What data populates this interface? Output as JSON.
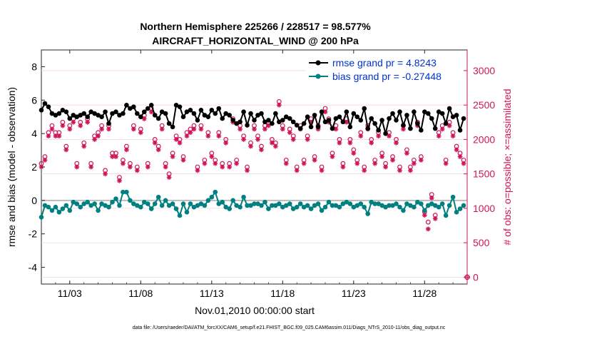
{
  "chart_data": {
    "type": "line",
    "title_line1": "Northern Hemisphere 225266 / 228517 = 98.577%",
    "title_line2": "AIRCRAFT_HORIZONTAL_WIND @ 200 hPa",
    "xlabel": "Nov.01,2010 00:00:00 start",
    "ylabel_left": "rmse and bias (model - observation)",
    "ylabel_right": "# of obs: o=possible; ×=assimilated",
    "footer": "data file: /Users/raeder/DAI/ATM_forcXX/CAM6_setup/f.e21.FHIST_BGC.f09_025.CAM6assim.011/Diags_NTrS_2010-11/obs_diag_output.nc",
    "xlim": [
      1,
      31
    ],
    "ylim_left": [
      -5,
      9
    ],
    "ylim_right": [
      -100,
      3300
    ],
    "x_ticks": [
      3,
      8,
      13,
      18,
      23,
      28
    ],
    "x_tick_labels": [
      "11/03",
      "11/08",
      "11/13",
      "11/18",
      "11/23",
      "11/28"
    ],
    "y_left_ticks": [
      -4,
      -2,
      0,
      2,
      4,
      6,
      8
    ],
    "y_left_tick_labels": [
      "-4",
      "-2",
      "0",
      "2",
      "4",
      "6",
      "8"
    ],
    "y_right_ticks": [
      0,
      500,
      1000,
      1500,
      2000,
      2500,
      3000
    ],
    "y_right_tick_labels": [
      "0",
      "500",
      "1000",
      "1500",
      "2000",
      "2500",
      "3000"
    ],
    "legend": [
      {
        "label": "rmse grand pr = 4.8243",
        "color": "#000000"
      },
      {
        "label": "bias grand pr = -0.27448",
        "color": "#008080"
      }
    ],
    "colors": {
      "rmse": "#000000",
      "bias": "#008080",
      "obs": "#d0145a",
      "legend_text": "#0033cc",
      "zero_line": "#bbbbbb"
    },
    "series": [
      {
        "name": "rmse",
        "axis": "left",
        "x": [
          1.0,
          1.25,
          1.5,
          1.75,
          2.0,
          2.25,
          2.5,
          2.75,
          3.0,
          3.25,
          3.5,
          3.75,
          4.0,
          4.25,
          4.5,
          4.75,
          5.0,
          5.25,
          5.5,
          5.75,
          6.0,
          6.25,
          6.5,
          6.75,
          7.0,
          7.25,
          7.5,
          7.75,
          8.0,
          8.25,
          8.5,
          8.75,
          9.0,
          9.25,
          9.5,
          9.75,
          10.0,
          10.25,
          10.5,
          10.75,
          11.0,
          11.25,
          11.5,
          11.75,
          12.0,
          12.25,
          12.5,
          12.75,
          13.0,
          13.25,
          13.5,
          13.75,
          14.0,
          14.25,
          14.5,
          14.75,
          15.0,
          15.25,
          15.5,
          15.75,
          16.0,
          16.25,
          16.5,
          16.75,
          17.0,
          17.25,
          17.5,
          17.75,
          18.0,
          18.25,
          18.5,
          18.75,
          19.0,
          19.25,
          19.5,
          19.75,
          20.0,
          20.25,
          20.5,
          20.75,
          21.0,
          21.25,
          21.5,
          21.75,
          22.0,
          22.25,
          22.5,
          22.75,
          23.0,
          23.25,
          23.5,
          23.75,
          24.0,
          24.25,
          24.5,
          24.75,
          25.0,
          25.25,
          25.5,
          25.75,
          26.0,
          26.25,
          26.5,
          26.75,
          27.0,
          27.25,
          27.5,
          27.75,
          28.0,
          28.25,
          28.5,
          28.75,
          29.0,
          29.25,
          29.5,
          29.75,
          30.0,
          30.25,
          30.5,
          30.75
        ],
        "values": [
          5.4,
          5.8,
          5.6,
          5.2,
          5.1,
          5.2,
          5.4,
          5.3,
          4.9,
          5.1,
          5.0,
          5.1,
          5.2,
          5.0,
          5.3,
          5.2,
          5.1,
          5.0,
          5.3,
          4.6,
          5.2,
          5.3,
          5.1,
          5.2,
          5.7,
          5.5,
          5.6,
          5.2,
          5.0,
          5.3,
          5.5,
          5.7,
          5.1,
          4.9,
          5.3,
          5.2,
          4.6,
          4.4,
          5.7,
          5.6,
          5.0,
          5.3,
          5.4,
          5.2,
          4.8,
          5.4,
          5.1,
          5.0,
          5.4,
          5.2,
          5.5,
          4.9,
          5.2,
          5.1,
          4.8,
          4.6,
          4.7,
          5.3,
          4.5,
          5.2,
          4.8,
          5.1,
          5.2,
          4.7,
          4.8,
          4.6,
          5.2,
          4.7,
          4.8,
          5.0,
          4.9,
          4.7,
          4.5,
          4.3,
          4.6,
          5.0,
          4.4,
          5.1,
          4.4,
          5.3,
          4.7,
          4.8,
          4.3,
          4.9,
          5.0,
          4.7,
          5.3,
          4.4,
          5.2,
          5.0,
          4.8,
          5.5,
          4.3,
          4.9,
          4.6,
          4.2,
          4.8,
          4.0,
          4.9,
          5.2,
          4.8,
          5.3,
          4.5,
          5.1,
          4.3,
          5.3,
          4.6,
          4.2,
          5.3,
          5.2,
          4.9,
          4.3,
          5.3,
          5.2,
          4.6,
          5.5,
          5.0,
          5.1,
          4.2,
          4.9
        ],
        "marker": "filled-circle"
      },
      {
        "name": "bias",
        "axis": "left",
        "x": [
          1.0,
          1.25,
          1.5,
          1.75,
          2.0,
          2.25,
          2.5,
          2.75,
          3.0,
          3.25,
          3.5,
          3.75,
          4.0,
          4.25,
          4.5,
          4.75,
          5.0,
          5.25,
          5.5,
          5.75,
          6.0,
          6.25,
          6.5,
          6.75,
          7.0,
          7.25,
          7.5,
          7.75,
          8.0,
          8.25,
          8.5,
          8.75,
          9.0,
          9.25,
          9.5,
          9.75,
          10.0,
          10.25,
          10.5,
          10.75,
          11.0,
          11.25,
          11.5,
          11.75,
          12.0,
          12.25,
          12.5,
          12.75,
          13.0,
          13.25,
          13.5,
          13.75,
          14.0,
          14.25,
          14.5,
          14.75,
          15.0,
          15.25,
          15.5,
          15.75,
          16.0,
          16.25,
          16.5,
          16.75,
          17.0,
          17.25,
          17.5,
          17.75,
          18.0,
          18.25,
          18.5,
          18.75,
          19.0,
          19.25,
          19.5,
          19.75,
          20.0,
          20.25,
          20.5,
          20.75,
          21.0,
          21.25,
          21.5,
          21.75,
          22.0,
          22.25,
          22.5,
          22.75,
          23.0,
          23.25,
          23.5,
          23.75,
          24.0,
          24.25,
          24.5,
          24.75,
          25.0,
          25.25,
          25.5,
          25.75,
          26.0,
          26.25,
          26.5,
          26.75,
          27.0,
          27.25,
          27.5,
          27.75,
          28.0,
          28.25,
          28.5,
          28.75,
          29.0,
          29.25,
          29.5,
          29.75,
          30.0,
          30.25,
          30.5,
          30.75
        ],
        "values": [
          -1.0,
          -0.3,
          -0.4,
          -0.6,
          -0.4,
          -0.7,
          -0.5,
          -0.3,
          -0.6,
          -0.1,
          -0.2,
          -0.4,
          -0.2,
          -0.1,
          -0.3,
          -0.2,
          -0.6,
          -0.2,
          -0.3,
          -0.4,
          -0.1,
          0.1,
          -0.3,
          0.5,
          0.5,
          0.0,
          -0.2,
          -0.3,
          -0.4,
          -0.1,
          -0.2,
          -0.5,
          -0.2,
          0.2,
          -0.3,
          0.0,
          -0.3,
          -0.2,
          -0.5,
          -0.9,
          -0.2,
          -0.7,
          -0.2,
          -0.4,
          -0.3,
          -0.2,
          -0.3,
          0.0,
          0.2,
          0.5,
          -0.2,
          -0.1,
          -0.4,
          -0.5,
          0.0,
          -0.3,
          -0.4,
          0.2,
          -0.3,
          -0.3,
          -0.2,
          -0.2,
          -0.3,
          -0.1,
          -0.5,
          -0.3,
          -0.3,
          -0.2,
          -0.4,
          -0.3,
          -0.2,
          -0.5,
          -0.4,
          -0.2,
          -0.4,
          -0.3,
          -0.5,
          -0.3,
          -0.2,
          -0.6,
          -0.4,
          -0.1,
          -0.3,
          -0.3,
          -0.4,
          -0.2,
          -0.1,
          -0.2,
          -0.4,
          -0.3,
          -0.2,
          -0.4,
          -0.8,
          -0.1,
          -0.2,
          -0.2,
          -0.3,
          -0.4,
          -0.3,
          -0.3,
          -0.2,
          -0.4,
          -0.6,
          -0.2,
          -0.3,
          -0.4,
          -0.1,
          -0.2,
          -0.6,
          -0.3,
          -0.2,
          -0.3,
          -0.4,
          -0.2,
          -0.9,
          -0.3,
          0.2,
          -0.7,
          -0.5,
          -0.3
        ],
        "marker": "filled-circle"
      },
      {
        "name": "obs possible",
        "axis": "right",
        "x": [
          1.0,
          1.25,
          1.5,
          1.75,
          2.0,
          2.25,
          2.5,
          2.75,
          3.0,
          3.25,
          3.5,
          3.75,
          4.0,
          4.25,
          4.5,
          4.75,
          5.0,
          5.25,
          5.5,
          5.75,
          6.0,
          6.25,
          6.5,
          6.75,
          7.0,
          7.25,
          7.5,
          7.75,
          8.0,
          8.25,
          8.5,
          8.75,
          9.0,
          9.25,
          9.5,
          9.75,
          10.0,
          10.25,
          10.5,
          10.75,
          11.0,
          11.25,
          11.5,
          11.75,
          12.0,
          12.25,
          12.5,
          12.75,
          13.0,
          13.25,
          13.5,
          13.75,
          14.0,
          14.25,
          14.5,
          14.75,
          15.0,
          15.25,
          15.5,
          15.75,
          16.0,
          16.25,
          16.5,
          16.75,
          17.0,
          17.25,
          17.5,
          17.75,
          18.0,
          18.25,
          18.5,
          18.75,
          19.0,
          19.25,
          19.5,
          19.75,
          20.0,
          20.25,
          20.5,
          20.75,
          21.0,
          21.25,
          21.5,
          21.75,
          22.0,
          22.25,
          22.5,
          22.75,
          23.0,
          23.25,
          23.5,
          23.75,
          24.0,
          24.25,
          24.5,
          24.75,
          25.0,
          25.25,
          25.5,
          25.75,
          26.0,
          26.25,
          26.5,
          26.75,
          27.0,
          27.25,
          27.5,
          27.75,
          28.0,
          28.25,
          28.5,
          28.75,
          29.0,
          29.25,
          29.5,
          29.75,
          30.0,
          30.25,
          30.5,
          30.75
        ],
        "values": [
          1650,
          1750,
          2100,
          2200,
          2100,
          2100,
          2250,
          1900,
          2200,
          2300,
          1650,
          2250,
          1950,
          2300,
          1650,
          2050,
          2100,
          2200,
          1550,
          2200,
          1800,
          1800,
          1450,
          1700,
          1900,
          1650,
          2200,
          1600,
          2150,
          2350,
          1650,
          2450,
          2000,
          1900,
          2200,
          1650,
          1500,
          1800,
          2050,
          2000,
          1750,
          2100,
          2150,
          2200,
          1600,
          2200,
          1700,
          2100,
          1800,
          1700,
          2100,
          1650,
          2000,
          1650,
          2300,
          1700,
          2200,
          2050,
          1600,
          1950,
          2200,
          2050,
          1900,
          2200,
          2250,
          2000,
          1950,
          2550,
          2200,
          1700,
          2150,
          2050,
          1600,
          2200,
          1700,
          2050,
          2300,
          1750,
          2200,
          1600,
          2450,
          2300,
          1800,
          2200,
          2000,
          1650,
          2300,
          2000,
          1850,
          1700,
          2100,
          1600,
          2200,
          2000,
          1700,
          2100,
          1800,
          1650,
          2100,
          1750,
          2000,
          1600,
          2200,
          1850,
          1600,
          1700,
          2250,
          1750,
          950,
          800,
          1200,
          900,
          2100,
          2200,
          1700,
          2250,
          2100,
          1900,
          1800,
          1700
        ],
        "marker": "open-circle"
      },
      {
        "name": "obs assimilated",
        "axis": "right",
        "x": [
          1.0,
          1.25,
          1.5,
          1.75,
          2.0,
          2.25,
          2.5,
          2.75,
          3.0,
          3.25,
          3.5,
          3.75,
          4.0,
          4.25,
          4.5,
          4.75,
          5.0,
          5.25,
          5.5,
          5.75,
          6.0,
          6.25,
          6.5,
          6.75,
          7.0,
          7.25,
          7.5,
          7.75,
          8.0,
          8.25,
          8.5,
          8.75,
          9.0,
          9.25,
          9.5,
          9.75,
          10.0,
          10.25,
          10.5,
          10.75,
          11.0,
          11.25,
          11.5,
          11.75,
          12.0,
          12.25,
          12.5,
          12.75,
          13.0,
          13.25,
          13.5,
          13.75,
          14.0,
          14.25,
          14.5,
          14.75,
          15.0,
          15.25,
          15.5,
          15.75,
          16.0,
          16.25,
          16.5,
          16.75,
          17.0,
          17.25,
          17.5,
          17.75,
          18.0,
          18.25,
          18.5,
          18.75,
          19.0,
          19.25,
          19.5,
          19.75,
          20.0,
          20.25,
          20.5,
          20.75,
          21.0,
          21.25,
          21.5,
          21.75,
          22.0,
          22.25,
          22.5,
          22.75,
          23.0,
          23.25,
          23.5,
          23.75,
          24.0,
          24.25,
          24.5,
          24.75,
          25.0,
          25.25,
          25.5,
          25.75,
          26.0,
          26.25,
          26.5,
          26.75,
          27.0,
          27.25,
          27.5,
          27.75,
          28.0,
          28.25,
          28.5,
          28.75,
          29.0,
          29.25,
          29.5,
          29.75,
          30.0,
          30.25,
          30.5,
          30.75
        ],
        "values": [
          1600,
          1700,
          2050,
          2150,
          2050,
          2050,
          2200,
          1850,
          2150,
          2250,
          1600,
          2200,
          1900,
          2250,
          1600,
          2000,
          2050,
          2150,
          1500,
          2150,
          1750,
          1750,
          1400,
          1650,
          1850,
          1600,
          2150,
          1550,
          2100,
          2300,
          1600,
          2400,
          1950,
          1850,
          2150,
          1600,
          1450,
          1750,
          2000,
          1950,
          1700,
          2050,
          2100,
          2150,
          1550,
          2150,
          1650,
          2050,
          1750,
          1650,
          2050,
          1600,
          1950,
          1600,
          2250,
          1650,
          2150,
          2000,
          1550,
          1900,
          2150,
          2000,
          1850,
          2150,
          2200,
          1950,
          1900,
          2500,
          2150,
          1650,
          2100,
          2000,
          1550,
          2150,
          1650,
          2000,
          2250,
          1700,
          2150,
          1550,
          2400,
          2250,
          1750,
          2150,
          1950,
          1600,
          2250,
          1950,
          1800,
          1650,
          2050,
          1550,
          2150,
          1950,
          1650,
          2050,
          1750,
          1600,
          2050,
          1700,
          1950,
          1550,
          2150,
          1800,
          1550,
          1650,
          2200,
          1700,
          900,
          700,
          1150,
          850,
          2050,
          2150,
          1650,
          2200,
          2050,
          1850,
          1750,
          1650
        ],
        "marker": "asterisk"
      }
    ],
    "extra_points": [
      {
        "name": "right-edge obs at zero",
        "x": 31,
        "value": 0,
        "axis": "right"
      }
    ]
  }
}
